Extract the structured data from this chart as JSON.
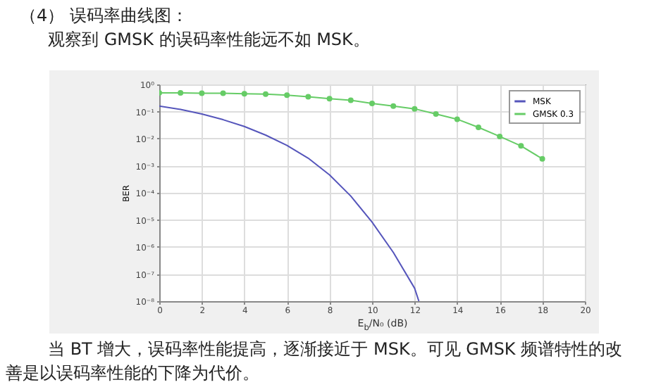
{
  "chart_data": {
    "type": "line",
    "title": "（4） 误码率曲线图：",
    "subtitle": "观察到 GMSK 的误码率性能远不如 MSK。",
    "xlabel": "E$_{b}$/N₀ (dB)",
    "ylabel": "BER",
    "annotations": [
      "当 BT 增大，误码率性能提高，逐渐接近于 MSK。可见 GMSK 频谱特性的改善是以误码率性能的下降为代价。"
    ],
    "log": true,
    "grid": true,
    "legend": "top right",
    "xlim": [
      0,
      20
    ],
    "xticks": [
      0,
      2,
      4,
      6,
      8,
      10,
      12,
      14,
      16,
      18,
      20
    ],
    "ylim": [
      1e-08,
      1
    ],
    "yticks": [
      {
        "value": 1e-08,
        "label": "10⁻⁸"
      },
      {
        "value": 1e-07,
        "label": "10⁻⁷"
      },
      {
        "value": 1e-06,
        "label": "10⁻⁶"
      },
      {
        "value": 1e-05,
        "label": "10⁻⁵"
      },
      {
        "value": 0.0001,
        "label": "10⁻⁴"
      },
      {
        "value": 0.001,
        "label": "10⁻³"
      },
      {
        "value": 0.01,
        "label": "10⁻²"
      },
      {
        "value": 0.1,
        "label": "10⁻¹"
      },
      {
        "value": 1,
        "label": "10⁰"
      }
    ],
    "series": [
      {
        "name": "MSK",
        "color": "#5555bb",
        "marker": "none",
        "x": [
          0,
          1,
          2,
          3,
          4,
          5,
          6,
          7,
          8,
          9,
          10,
          11,
          12,
          12.2
        ],
        "values": [
          0.16,
          0.12,
          0.081,
          0.05,
          0.028,
          0.0135,
          0.0056,
          0.0019,
          0.00046,
          7.6e-05,
          8.3e-06,
          6.3e-07,
          3e-08,
          1e-08
        ]
      },
      {
        "name": "GMSK 0.3",
        "color": "#66cc66",
        "marker": "circle",
        "x": [
          0,
          1,
          2,
          3,
          4,
          5,
          6,
          7,
          8,
          9,
          10,
          11,
          12,
          13,
          14,
          15,
          16,
          17,
          18
        ],
        "values": [
          0.49,
          0.49,
          0.47,
          0.47,
          0.45,
          0.44,
          0.4,
          0.35,
          0.3,
          0.26,
          0.2,
          0.16,
          0.126,
          0.081,
          0.052,
          0.026,
          0.012,
          0.0054,
          0.0018
        ]
      }
    ]
  }
}
